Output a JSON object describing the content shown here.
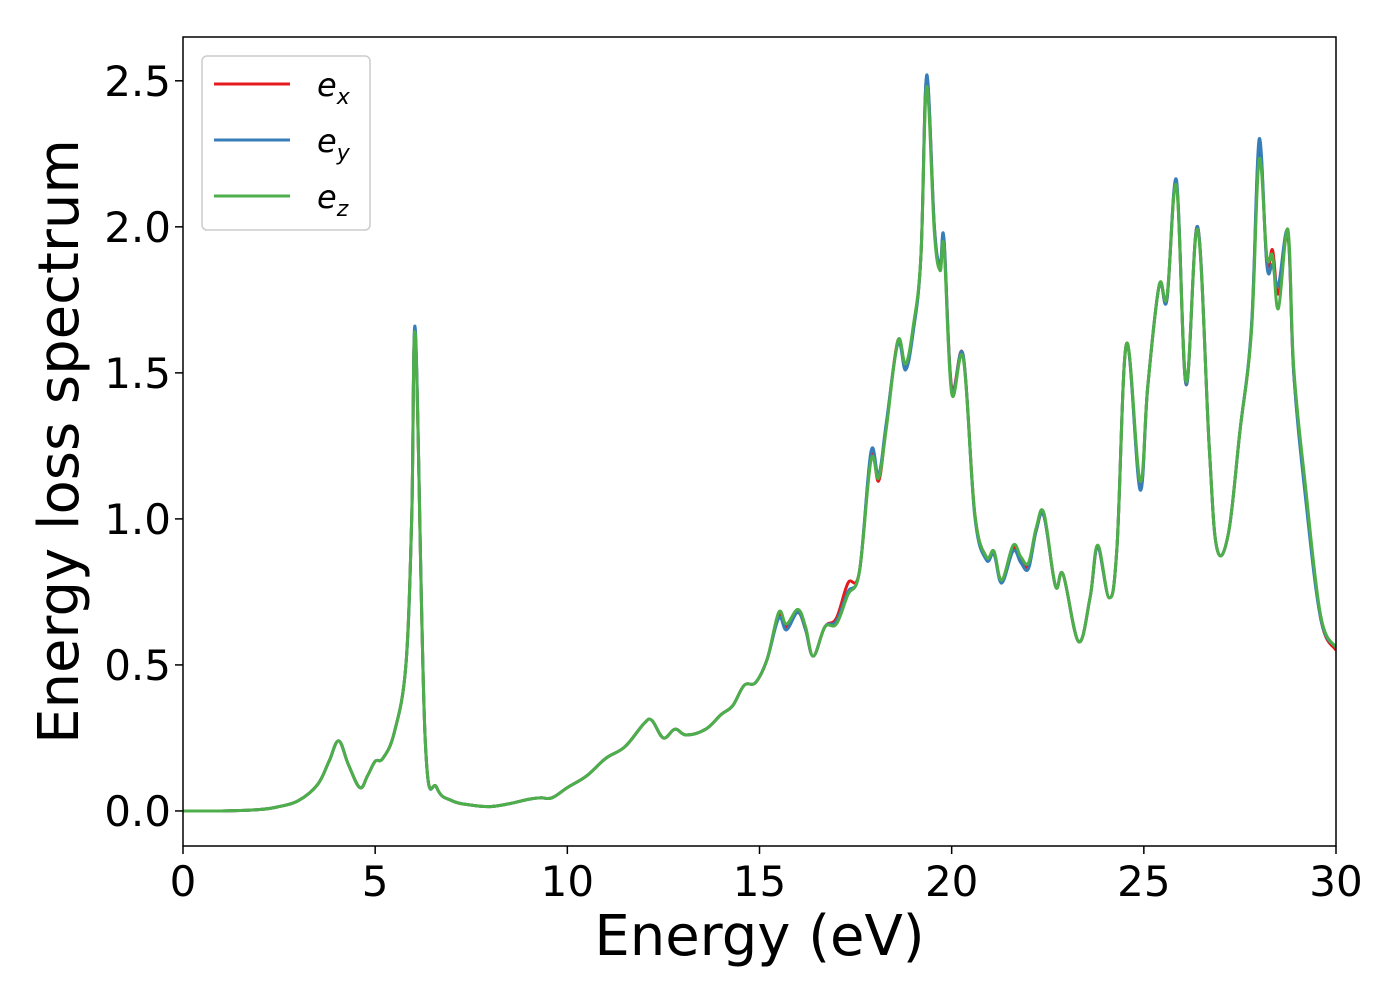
{
  "chart_data": {
    "type": "line",
    "xlabel": "Energy (eV)",
    "ylabel": "Energy loss spectrum",
    "xlim": [
      0,
      30
    ],
    "ylim": [
      -0.12,
      2.65
    ],
    "xticks": [
      0,
      5,
      10,
      15,
      20,
      25,
      30
    ],
    "yticks": [
      0.0,
      0.5,
      1.0,
      1.5,
      2.0,
      2.5
    ],
    "xtick_labels": [
      "0",
      "5",
      "10",
      "15",
      "20",
      "25",
      "30"
    ],
    "ytick_labels": [
      "0.0",
      "0.5",
      "1.0",
      "1.5",
      "2.0",
      "2.5"
    ],
    "grid": false,
    "legend_position": "top-left",
    "series": [
      {
        "name": "e_x",
        "label_base": "e",
        "label_sub": "x",
        "color": "#e41a1c",
        "x": [
          0,
          1,
          2,
          2.5,
          3,
          3.5,
          3.8,
          4.05,
          4.3,
          4.6,
          4.8,
          5.0,
          5.2,
          5.5,
          5.8,
          5.95,
          6.05,
          6.3,
          6.6,
          7,
          7.5,
          8,
          8.5,
          9,
          9.3,
          9.6,
          10,
          10.5,
          11,
          11.5,
          12,
          12.2,
          12.5,
          12.8,
          13.1,
          13.6,
          14,
          14.3,
          14.6,
          14.9,
          15.2,
          15.5,
          15.7,
          16,
          16.2,
          16.4,
          16.7,
          17,
          17.3,
          17.6,
          17.9,
          18.1,
          18.3,
          18.6,
          18.8,
          19.0,
          19.2,
          19.35,
          19.55,
          19.7,
          19.8,
          20.0,
          20.3,
          20.6,
          20.9,
          21.1,
          21.3,
          21.6,
          21.8,
          22.0,
          22.2,
          22.4,
          22.7,
          22.9,
          23.3,
          23.6,
          23.8,
          24.1,
          24.3,
          24.55,
          24.9,
          25.1,
          25.4,
          25.6,
          25.85,
          26.1,
          26.4,
          26.7,
          26.9,
          27.2,
          27.5,
          27.8,
          28.0,
          28.2,
          28.35,
          28.5,
          28.75,
          28.9,
          29.2,
          29.6,
          30
        ],
        "y": [
          0.0,
          0.0,
          0.005,
          0.015,
          0.035,
          0.09,
          0.17,
          0.24,
          0.16,
          0.08,
          0.12,
          0.17,
          0.18,
          0.27,
          0.5,
          1.0,
          1.62,
          0.25,
          0.08,
          0.035,
          0.02,
          0.015,
          0.025,
          0.04,
          0.045,
          0.045,
          0.08,
          0.12,
          0.18,
          0.22,
          0.3,
          0.31,
          0.25,
          0.28,
          0.26,
          0.28,
          0.33,
          0.36,
          0.43,
          0.44,
          0.52,
          0.67,
          0.63,
          0.68,
          0.62,
          0.53,
          0.63,
          0.66,
          0.78,
          0.82,
          1.22,
          1.13,
          1.32,
          1.61,
          1.52,
          1.65,
          1.9,
          2.51,
          2.0,
          1.86,
          1.95,
          1.45,
          1.56,
          1.02,
          0.87,
          0.88,
          0.79,
          0.9,
          0.86,
          0.84,
          0.96,
          1.01,
          0.77,
          0.81,
          0.58,
          0.73,
          0.9,
          0.73,
          0.9,
          1.6,
          1.11,
          1.45,
          1.8,
          1.75,
          2.15,
          1.46,
          2.0,
          1.25,
          0.9,
          0.95,
          1.3,
          1.65,
          2.28,
          1.88,
          1.92,
          1.77,
          1.97,
          1.5,
          1.1,
          0.66,
          0.55
        ]
      },
      {
        "name": "e_y",
        "label_base": "e",
        "label_sub": "y",
        "color": "#377eb8",
        "x": [
          0,
          1,
          2,
          2.5,
          3,
          3.5,
          3.8,
          4.05,
          4.3,
          4.6,
          4.8,
          5.0,
          5.2,
          5.5,
          5.8,
          5.95,
          6.05,
          6.3,
          6.6,
          7,
          7.5,
          8,
          8.5,
          9,
          9.3,
          9.6,
          10,
          10.5,
          11,
          11.5,
          12,
          12.2,
          12.5,
          12.8,
          13.1,
          13.6,
          14,
          14.3,
          14.6,
          14.9,
          15.2,
          15.5,
          15.7,
          16,
          16.2,
          16.4,
          16.7,
          17,
          17.3,
          17.6,
          17.9,
          18.1,
          18.3,
          18.6,
          18.8,
          19.0,
          19.2,
          19.35,
          19.55,
          19.7,
          19.8,
          20.0,
          20.3,
          20.6,
          20.9,
          21.1,
          21.3,
          21.6,
          21.8,
          22.0,
          22.2,
          22.4,
          22.7,
          22.9,
          23.3,
          23.6,
          23.8,
          24.1,
          24.3,
          24.55,
          24.9,
          25.1,
          25.4,
          25.6,
          25.85,
          26.1,
          26.4,
          26.7,
          26.9,
          27.2,
          27.5,
          27.8,
          28.0,
          28.2,
          28.35,
          28.5,
          28.75,
          28.9,
          29.2,
          29.6,
          30
        ],
        "y": [
          0.0,
          0.0,
          0.005,
          0.015,
          0.035,
          0.09,
          0.17,
          0.24,
          0.16,
          0.08,
          0.12,
          0.17,
          0.18,
          0.27,
          0.5,
          1.0,
          1.64,
          0.25,
          0.08,
          0.035,
          0.02,
          0.015,
          0.025,
          0.04,
          0.045,
          0.045,
          0.08,
          0.12,
          0.18,
          0.22,
          0.3,
          0.31,
          0.25,
          0.28,
          0.26,
          0.28,
          0.33,
          0.36,
          0.43,
          0.44,
          0.52,
          0.66,
          0.62,
          0.68,
          0.62,
          0.53,
          0.63,
          0.65,
          0.75,
          0.82,
          1.23,
          1.15,
          1.33,
          1.6,
          1.51,
          1.64,
          1.9,
          2.52,
          2.0,
          1.87,
          1.96,
          1.44,
          1.56,
          1.01,
          0.86,
          0.88,
          0.78,
          0.89,
          0.85,
          0.83,
          0.96,
          1.01,
          0.77,
          0.81,
          0.58,
          0.73,
          0.9,
          0.73,
          0.9,
          1.6,
          1.1,
          1.45,
          1.8,
          1.75,
          2.16,
          1.46,
          2.0,
          1.25,
          0.9,
          0.95,
          1.3,
          1.66,
          2.3,
          1.87,
          1.87,
          1.8,
          1.98,
          1.5,
          1.08,
          0.66,
          0.56
        ]
      },
      {
        "name": "e_z",
        "label_base": "e",
        "label_sub": "z",
        "color": "#4daf4a",
        "x": [
          0,
          1,
          2,
          2.5,
          3,
          3.5,
          3.8,
          4.05,
          4.3,
          4.6,
          4.8,
          5.0,
          5.2,
          5.5,
          5.8,
          5.95,
          6.05,
          6.3,
          6.6,
          7,
          7.5,
          8,
          8.5,
          9,
          9.3,
          9.6,
          10,
          10.5,
          11,
          11.5,
          12,
          12.2,
          12.5,
          12.8,
          13.1,
          13.6,
          14,
          14.3,
          14.6,
          14.9,
          15.2,
          15.5,
          15.7,
          16,
          16.2,
          16.4,
          16.7,
          17,
          17.3,
          17.6,
          17.9,
          18.1,
          18.3,
          18.6,
          18.8,
          19.0,
          19.2,
          19.35,
          19.55,
          19.7,
          19.8,
          20.0,
          20.3,
          20.6,
          20.9,
          21.1,
          21.3,
          21.6,
          21.8,
          22.0,
          22.2,
          22.4,
          22.7,
          22.9,
          23.3,
          23.6,
          23.8,
          24.1,
          24.3,
          24.55,
          24.9,
          25.1,
          25.4,
          25.6,
          25.85,
          26.1,
          26.4,
          26.7,
          26.9,
          27.2,
          27.5,
          27.8,
          28.0,
          28.2,
          28.35,
          28.5,
          28.75,
          28.9,
          29.2,
          29.6,
          30
        ],
        "y": [
          0.0,
          0.0,
          0.005,
          0.015,
          0.035,
          0.09,
          0.17,
          0.24,
          0.16,
          0.08,
          0.12,
          0.17,
          0.18,
          0.27,
          0.5,
          1.0,
          1.62,
          0.25,
          0.08,
          0.035,
          0.02,
          0.015,
          0.025,
          0.04,
          0.045,
          0.045,
          0.08,
          0.12,
          0.18,
          0.22,
          0.3,
          0.31,
          0.25,
          0.28,
          0.26,
          0.28,
          0.33,
          0.36,
          0.43,
          0.44,
          0.52,
          0.68,
          0.64,
          0.69,
          0.63,
          0.53,
          0.63,
          0.64,
          0.74,
          0.82,
          1.2,
          1.14,
          1.31,
          1.61,
          1.53,
          1.66,
          1.9,
          2.48,
          1.98,
          1.85,
          1.93,
          1.43,
          1.55,
          1.02,
          0.87,
          0.89,
          0.79,
          0.91,
          0.87,
          0.85,
          0.97,
          1.02,
          0.77,
          0.81,
          0.58,
          0.73,
          0.91,
          0.73,
          0.9,
          1.6,
          1.13,
          1.45,
          1.8,
          1.76,
          2.14,
          1.47,
          1.99,
          1.25,
          0.9,
          0.95,
          1.3,
          1.64,
          2.23,
          1.9,
          1.9,
          1.72,
          1.99,
          1.52,
          1.12,
          0.67,
          0.56
        ]
      }
    ]
  }
}
